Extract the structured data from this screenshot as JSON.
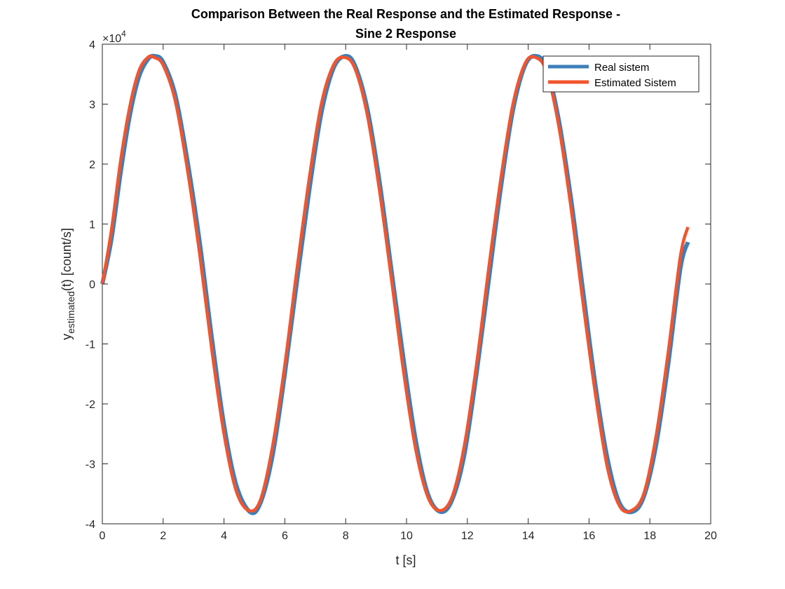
{
  "chart_data": {
    "type": "line",
    "title_line1": "Comparison Between the Real Response and the Estimated Response -",
    "title_line2": "Sine 2 Response",
    "xlabel": "t [s]",
    "ylabel_main": "y",
    "ylabel_sub": "estimated",
    "ylabel_rest": "(t) [count/s]",
    "y_multiplier_base": "×10",
    "y_multiplier_exp": "4",
    "xlim": [
      0,
      20
    ],
    "ylim": [
      -40000,
      40000
    ],
    "x_ticks": [
      0,
      2,
      4,
      6,
      8,
      10,
      12,
      14,
      16,
      18,
      20
    ],
    "x_tick_labels": [
      "0",
      "2",
      "4",
      "6",
      "8",
      "10",
      "12",
      "14",
      "16",
      "18",
      "20"
    ],
    "y_ticks": [
      -40000,
      -30000,
      -20000,
      -10000,
      0,
      10000,
      20000,
      30000,
      40000
    ],
    "y_tick_labels": [
      "-4",
      "-3",
      "-2",
      "-1",
      "0",
      "1",
      "2",
      "3",
      "4"
    ],
    "grid": false,
    "legend_position": "top-right",
    "series": [
      {
        "name": "Real sistem",
        "color": "#3d7fb8",
        "x": [
          0,
          0.3,
          0.6,
          0.9,
          1.2,
          1.5,
          1.73,
          2.0,
          2.4,
          2.8,
          3.2,
          3.6,
          4.0,
          4.4,
          4.85,
          5.2,
          5.6,
          6.0,
          6.4,
          6.8,
          7.2,
          7.6,
          7.98,
          8.3,
          8.7,
          9.1,
          9.5,
          9.9,
          10.3,
          10.7,
          11.12,
          11.5,
          11.9,
          12.3,
          12.7,
          13.1,
          13.5,
          13.9,
          14.27,
          14.6,
          15.0,
          15.4,
          15.8,
          16.2,
          16.6,
          17.0,
          17.42,
          17.8,
          18.2,
          18.6,
          19.0,
          19.25
        ],
        "y": [
          0,
          7500,
          18500,
          28000,
          34500,
          37500,
          38000,
          37000,
          31500,
          20500,
          7000,
          -9000,
          -23500,
          -33500,
          -38000,
          -36500,
          -28500,
          -15000,
          500,
          15500,
          28500,
          36000,
          38000,
          36500,
          29500,
          17500,
          2500,
          -12500,
          -26000,
          -35000,
          -38000,
          -36000,
          -28500,
          -15000,
          500,
          16000,
          29000,
          36500,
          38000,
          36000,
          27500,
          14500,
          -1000,
          -16500,
          -29000,
          -36500,
          -38000,
          -35500,
          -27000,
          -13500,
          2500,
          7000
        ]
      },
      {
        "name": "Estimated Sistem",
        "color": "#f0552f",
        "x": [
          0,
          0.3,
          0.6,
          0.9,
          1.2,
          1.5,
          1.7,
          2.0,
          2.4,
          2.8,
          3.2,
          3.6,
          4.0,
          4.4,
          4.82,
          5.2,
          5.6,
          6.0,
          6.4,
          6.8,
          7.2,
          7.6,
          7.95,
          8.3,
          8.7,
          9.1,
          9.5,
          9.9,
          10.3,
          10.7,
          11.1,
          11.5,
          11.9,
          12.3,
          12.7,
          13.1,
          13.5,
          13.9,
          14.23,
          14.6,
          15.0,
          15.4,
          15.8,
          16.2,
          16.6,
          17.0,
          17.39,
          17.8,
          18.2,
          18.6,
          19.0,
          19.25
        ],
        "y": [
          0,
          9000,
          20500,
          29500,
          35500,
          37800,
          37800,
          36500,
          30500,
          19000,
          5000,
          -11000,
          -25000,
          -34500,
          -37800,
          -36000,
          -27000,
          -13500,
          2500,
          17500,
          30000,
          36500,
          37800,
          36000,
          28500,
          16000,
          1000,
          -14500,
          -27500,
          -35500,
          -37800,
          -35500,
          -27000,
          -13500,
          2500,
          17500,
          30000,
          36800,
          37800,
          35500,
          26500,
          13000,
          -3000,
          -18000,
          -30500,
          -37000,
          -37800,
          -35000,
          -25500,
          -11500,
          4500,
          9500
        ]
      }
    ]
  }
}
